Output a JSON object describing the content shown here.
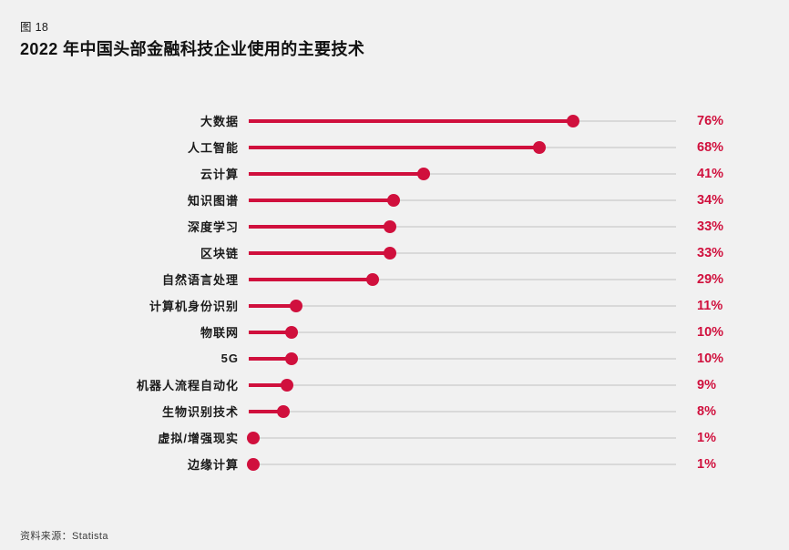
{
  "chart_data": {
    "type": "bar",
    "style": "lollipop-horizontal",
    "figure_label": "图 18",
    "title": "2022 年中国头部金融科技企业使用的主要技术",
    "categories": [
      "大数据",
      "人工智能",
      "云计算",
      "知识图谱",
      "深度学习",
      "区块链",
      "自然语言处理",
      "计算机身份识别",
      "物联网",
      "5G",
      "机器人流程自动化",
      "生物识别技术",
      "虚拟/增强现实",
      "边缘计算"
    ],
    "values": [
      76,
      68,
      41,
      34,
      33,
      33,
      29,
      11,
      10,
      10,
      9,
      8,
      1,
      1
    ],
    "value_suffix": "%",
    "xlim": [
      0,
      100
    ],
    "legend": "none",
    "grid": "off",
    "source": "资料来源：Statista",
    "accent_color": "#d0103d",
    "track_color": "#d9d9d9",
    "background_color": "#f1f1f1"
  }
}
